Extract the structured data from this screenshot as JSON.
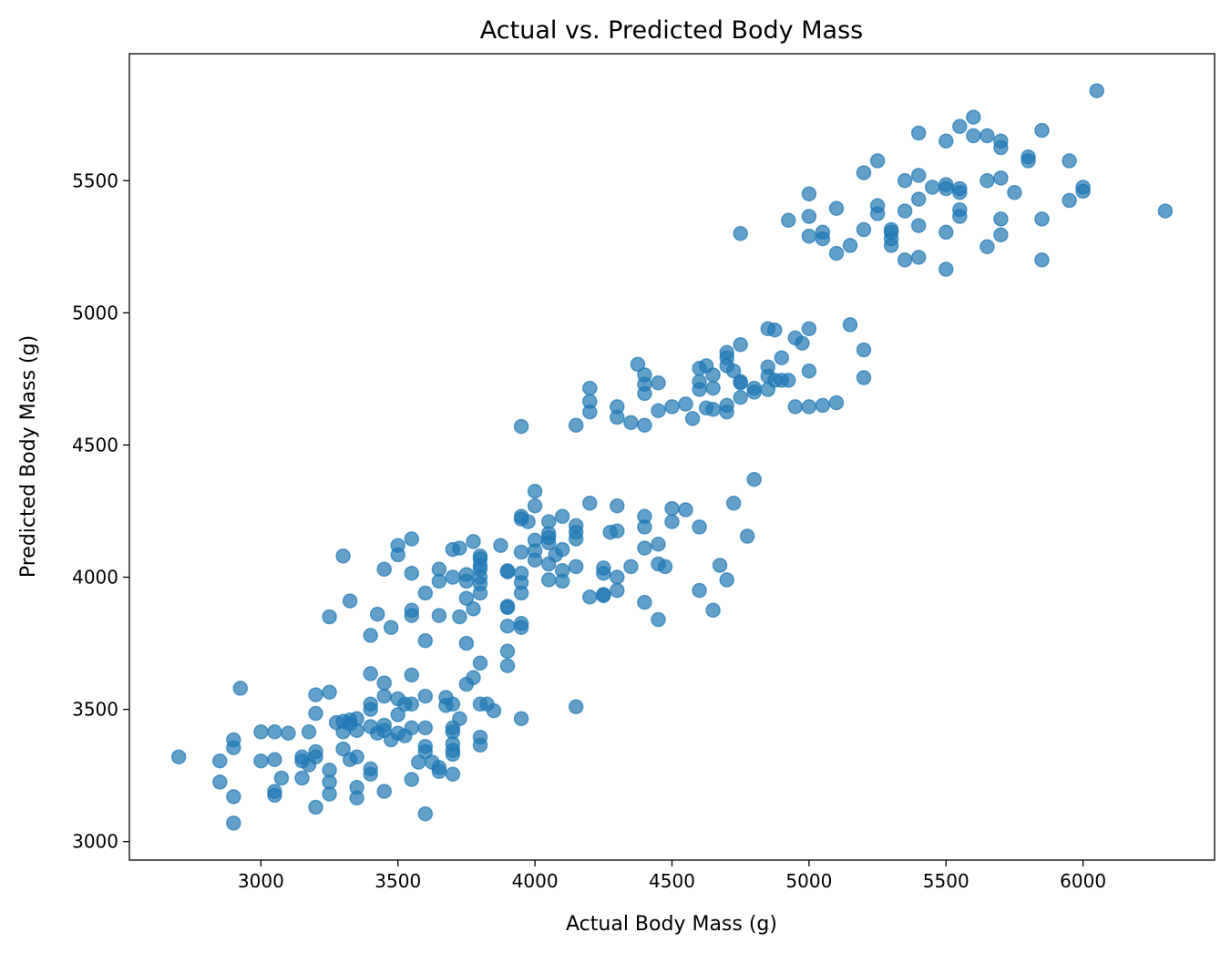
{
  "chart_data": {
    "type": "scatter",
    "title": "Actual vs. Predicted Body Mass",
    "xlabel": "Actual Body Mass (g)",
    "ylabel": "Predicted Body Mass (g)",
    "xlim": [
      2520,
      6480
    ],
    "ylim": [
      2930,
      5980
    ],
    "xticks": [
      3000,
      3500,
      4000,
      4500,
      5000,
      5500,
      6000
    ],
    "yticks": [
      3000,
      3500,
      4000,
      4500,
      5000,
      5500
    ],
    "grid": false,
    "marker_color": "#1f77b4",
    "marker_alpha": 0.7,
    "points": [
      [
        2700,
        3320
      ],
      [
        2850,
        3305
      ],
      [
        2850,
        3225
      ],
      [
        2900,
        3385
      ],
      [
        2900,
        3355
      ],
      [
        2900,
        3170
      ],
      [
        2900,
        3070
      ],
      [
        2925,
        3580
      ],
      [
        3000,
        3415
      ],
      [
        3000,
        3305
      ],
      [
        3050,
        3415
      ],
      [
        3050,
        3310
      ],
      [
        3050,
        3190
      ],
      [
        3050,
        3175
      ],
      [
        3075,
        3240
      ],
      [
        3100,
        3410
      ],
      [
        3150,
        3320
      ],
      [
        3150,
        3305
      ],
      [
        3150,
        3240
      ],
      [
        3175,
        3415
      ],
      [
        3175,
        3290
      ],
      [
        3200,
        3555
      ],
      [
        3200,
        3485
      ],
      [
        3200,
        3340
      ],
      [
        3200,
        3320
      ],
      [
        3200,
        3130
      ],
      [
        3250,
        3850
      ],
      [
        3250,
        3565
      ],
      [
        3250,
        3270
      ],
      [
        3250,
        3225
      ],
      [
        3250,
        3180
      ],
      [
        3275,
        3450
      ],
      [
        3300,
        4080
      ],
      [
        3300,
        3455
      ],
      [
        3300,
        3415
      ],
      [
        3300,
        3350
      ],
      [
        3325,
        3910
      ],
      [
        3325,
        3460
      ],
      [
        3325,
        3445
      ],
      [
        3325,
        3310
      ],
      [
        3350,
        3465
      ],
      [
        3350,
        3420
      ],
      [
        3350,
        3320
      ],
      [
        3350,
        3205
      ],
      [
        3350,
        3165
      ],
      [
        3400,
        3780
      ],
      [
        3400,
        3635
      ],
      [
        3400,
        3520
      ],
      [
        3400,
        3500
      ],
      [
        3400,
        3435
      ],
      [
        3400,
        3275
      ],
      [
        3400,
        3255
      ],
      [
        3425,
        3860
      ],
      [
        3425,
        3410
      ],
      [
        3450,
        4030
      ],
      [
        3450,
        3600
      ],
      [
        3450,
        3550
      ],
      [
        3450,
        3440
      ],
      [
        3450,
        3420
      ],
      [
        3450,
        3190
      ],
      [
        3475,
        3810
      ],
      [
        3475,
        3385
      ],
      [
        3500,
        4120
      ],
      [
        3500,
        4085
      ],
      [
        3500,
        3540
      ],
      [
        3500,
        3480
      ],
      [
        3500,
        3410
      ],
      [
        3525,
        3520
      ],
      [
        3525,
        3400
      ],
      [
        3550,
        4145
      ],
      [
        3550,
        4015
      ],
      [
        3550,
        3875
      ],
      [
        3550,
        3855
      ],
      [
        3550,
        3630
      ],
      [
        3550,
        3520
      ],
      [
        3550,
        3430
      ],
      [
        3550,
        3235
      ],
      [
        3575,
        3300
      ],
      [
        3600,
        3940
      ],
      [
        3600,
        3760
      ],
      [
        3600,
        3550
      ],
      [
        3600,
        3430
      ],
      [
        3600,
        3360
      ],
      [
        3600,
        3340
      ],
      [
        3600,
        3105
      ],
      [
        3625,
        3300
      ],
      [
        3650,
        4030
      ],
      [
        3650,
        3985
      ],
      [
        3650,
        3855
      ],
      [
        3650,
        3280
      ],
      [
        3650,
        3265
      ],
      [
        3675,
        3545
      ],
      [
        3675,
        3515
      ],
      [
        3700,
        4105
      ],
      [
        3700,
        4000
      ],
      [
        3700,
        3520
      ],
      [
        3700,
        3430
      ],
      [
        3700,
        3415
      ],
      [
        3700,
        3370
      ],
      [
        3700,
        3345
      ],
      [
        3700,
        3330
      ],
      [
        3700,
        3255
      ],
      [
        3725,
        4110
      ],
      [
        3725,
        3850
      ],
      [
        3725,
        3465
      ],
      [
        3750,
        4010
      ],
      [
        3750,
        3985
      ],
      [
        3750,
        3920
      ],
      [
        3750,
        3750
      ],
      [
        3750,
        3595
      ],
      [
        3775,
        4135
      ],
      [
        3775,
        3880
      ],
      [
        3775,
        3620
      ],
      [
        3800,
        4080
      ],
      [
        3800,
        4070
      ],
      [
        3800,
        4045
      ],
      [
        3800,
        4030
      ],
      [
        3800,
        4000
      ],
      [
        3800,
        3975
      ],
      [
        3800,
        3940
      ],
      [
        3800,
        3675
      ],
      [
        3800,
        3520
      ],
      [
        3800,
        3395
      ],
      [
        3800,
        3365
      ],
      [
        3825,
        3520
      ],
      [
        3850,
        3495
      ],
      [
        3875,
        4120
      ],
      [
        3900,
        4025
      ],
      [
        3900,
        4020
      ],
      [
        3900,
        3890
      ],
      [
        3900,
        3885
      ],
      [
        3900,
        3815
      ],
      [
        3900,
        3720
      ],
      [
        3900,
        3665
      ],
      [
        3950,
        4570
      ],
      [
        3950,
        4230
      ],
      [
        3950,
        4220
      ],
      [
        3950,
        4095
      ],
      [
        3950,
        4015
      ],
      [
        3950,
        3980
      ],
      [
        3950,
        3940
      ],
      [
        3950,
        3825
      ],
      [
        3950,
        3810
      ],
      [
        3950,
        3465
      ],
      [
        3975,
        4210
      ],
      [
        4000,
        4325
      ],
      [
        4000,
        4270
      ],
      [
        4000,
        4140
      ],
      [
        4000,
        4100
      ],
      [
        4000,
        4065
      ],
      [
        4050,
        4210
      ],
      [
        4050,
        4165
      ],
      [
        4050,
        4150
      ],
      [
        4050,
        4130
      ],
      [
        4050,
        4050
      ],
      [
        4050,
        3990
      ],
      [
        4075,
        4085
      ],
      [
        4100,
        4230
      ],
      [
        4100,
        4105
      ],
      [
        4100,
        4025
      ],
      [
        4100,
        3985
      ],
      [
        4150,
        4575
      ],
      [
        4150,
        4195
      ],
      [
        4150,
        4170
      ],
      [
        4150,
        4145
      ],
      [
        4150,
        4040
      ],
      [
        4150,
        3510
      ],
      [
        4200,
        4715
      ],
      [
        4200,
        4665
      ],
      [
        4200,
        4625
      ],
      [
        4200,
        4280
      ],
      [
        4200,
        3925
      ],
      [
        4250,
        4035
      ],
      [
        4250,
        4015
      ],
      [
        4250,
        3935
      ],
      [
        4250,
        3930
      ],
      [
        4275,
        4170
      ],
      [
        4300,
        4645
      ],
      [
        4300,
        4605
      ],
      [
        4300,
        4270
      ],
      [
        4300,
        4175
      ],
      [
        4300,
        4000
      ],
      [
        4300,
        3950
      ],
      [
        4350,
        4585
      ],
      [
        4350,
        4040
      ],
      [
        4375,
        4805
      ],
      [
        4400,
        4765
      ],
      [
        4400,
        4730
      ],
      [
        4400,
        4695
      ],
      [
        4400,
        4575
      ],
      [
        4400,
        4230
      ],
      [
        4400,
        4190
      ],
      [
        4400,
        4110
      ],
      [
        4400,
        3905
      ],
      [
        4450,
        4735
      ],
      [
        4450,
        4630
      ],
      [
        4450,
        4125
      ],
      [
        4450,
        4050
      ],
      [
        4450,
        3840
      ],
      [
        4475,
        4040
      ],
      [
        4500,
        4645
      ],
      [
        4500,
        4260
      ],
      [
        4500,
        4210
      ],
      [
        4550,
        4655
      ],
      [
        4550,
        4255
      ],
      [
        4575,
        4600
      ],
      [
        4600,
        4790
      ],
      [
        4600,
        4740
      ],
      [
        4600,
        4710
      ],
      [
        4600,
        4190
      ],
      [
        4600,
        3950
      ],
      [
        4625,
        4800
      ],
      [
        4625,
        4640
      ],
      [
        4650,
        4765
      ],
      [
        4650,
        4715
      ],
      [
        4650,
        4635
      ],
      [
        4650,
        3875
      ],
      [
        4675,
        4045
      ],
      [
        4700,
        4850
      ],
      [
        4700,
        4830
      ],
      [
        4700,
        4800
      ],
      [
        4700,
        4650
      ],
      [
        4700,
        4625
      ],
      [
        4700,
        3990
      ],
      [
        4725,
        4780
      ],
      [
        4725,
        4280
      ],
      [
        4750,
        5300
      ],
      [
        4750,
        4880
      ],
      [
        4750,
        4740
      ],
      [
        4750,
        4735
      ],
      [
        4750,
        4680
      ],
      [
        4775,
        4155
      ],
      [
        4800,
        4715
      ],
      [
        4800,
        4700
      ],
      [
        4800,
        4370
      ],
      [
        4850,
        4940
      ],
      [
        4850,
        4795
      ],
      [
        4850,
        4760
      ],
      [
        4850,
        4710
      ],
      [
        4875,
        4935
      ],
      [
        4875,
        4745
      ],
      [
        4900,
        4830
      ],
      [
        4900,
        4745
      ],
      [
        4925,
        5350
      ],
      [
        4925,
        4745
      ],
      [
        4950,
        4905
      ],
      [
        4950,
        4645
      ],
      [
        4975,
        4885
      ],
      [
        5000,
        5450
      ],
      [
        5000,
        5365
      ],
      [
        5000,
        5290
      ],
      [
        5000,
        4940
      ],
      [
        5000,
        4780
      ],
      [
        5000,
        4645
      ],
      [
        5050,
        5305
      ],
      [
        5050,
        5280
      ],
      [
        5050,
        4650
      ],
      [
        5100,
        5395
      ],
      [
        5100,
        5225
      ],
      [
        5100,
        4660
      ],
      [
        5150,
        5255
      ],
      [
        5150,
        4955
      ],
      [
        5200,
        5530
      ],
      [
        5200,
        5315
      ],
      [
        5200,
        4860
      ],
      [
        5200,
        4755
      ],
      [
        5250,
        5575
      ],
      [
        5250,
        5405
      ],
      [
        5250,
        5375
      ],
      [
        5300,
        5315
      ],
      [
        5300,
        5305
      ],
      [
        5300,
        5280
      ],
      [
        5300,
        5255
      ],
      [
        5350,
        5500
      ],
      [
        5350,
        5385
      ],
      [
        5350,
        5200
      ],
      [
        5400,
        5680
      ],
      [
        5400,
        5520
      ],
      [
        5400,
        5430
      ],
      [
        5400,
        5330
      ],
      [
        5400,
        5210
      ],
      [
        5450,
        5475
      ],
      [
        5500,
        5650
      ],
      [
        5500,
        5485
      ],
      [
        5500,
        5470
      ],
      [
        5500,
        5305
      ],
      [
        5500,
        5165
      ],
      [
        5550,
        5705
      ],
      [
        5550,
        5470
      ],
      [
        5550,
        5455
      ],
      [
        5550,
        5390
      ],
      [
        5550,
        5365
      ],
      [
        5600,
        5740
      ],
      [
        5600,
        5670
      ],
      [
        5650,
        5670
      ],
      [
        5650,
        5500
      ],
      [
        5650,
        5250
      ],
      [
        5700,
        5650
      ],
      [
        5700,
        5625
      ],
      [
        5700,
        5510
      ],
      [
        5700,
        5355
      ],
      [
        5700,
        5295
      ],
      [
        5750,
        5455
      ],
      [
        5800,
        5590
      ],
      [
        5800,
        5575
      ],
      [
        5850,
        5690
      ],
      [
        5850,
        5355
      ],
      [
        5850,
        5200
      ],
      [
        5950,
        5575
      ],
      [
        5950,
        5425
      ],
      [
        6000,
        5475
      ],
      [
        6000,
        5460
      ],
      [
        6050,
        5840
      ],
      [
        6300,
        5385
      ]
    ]
  }
}
